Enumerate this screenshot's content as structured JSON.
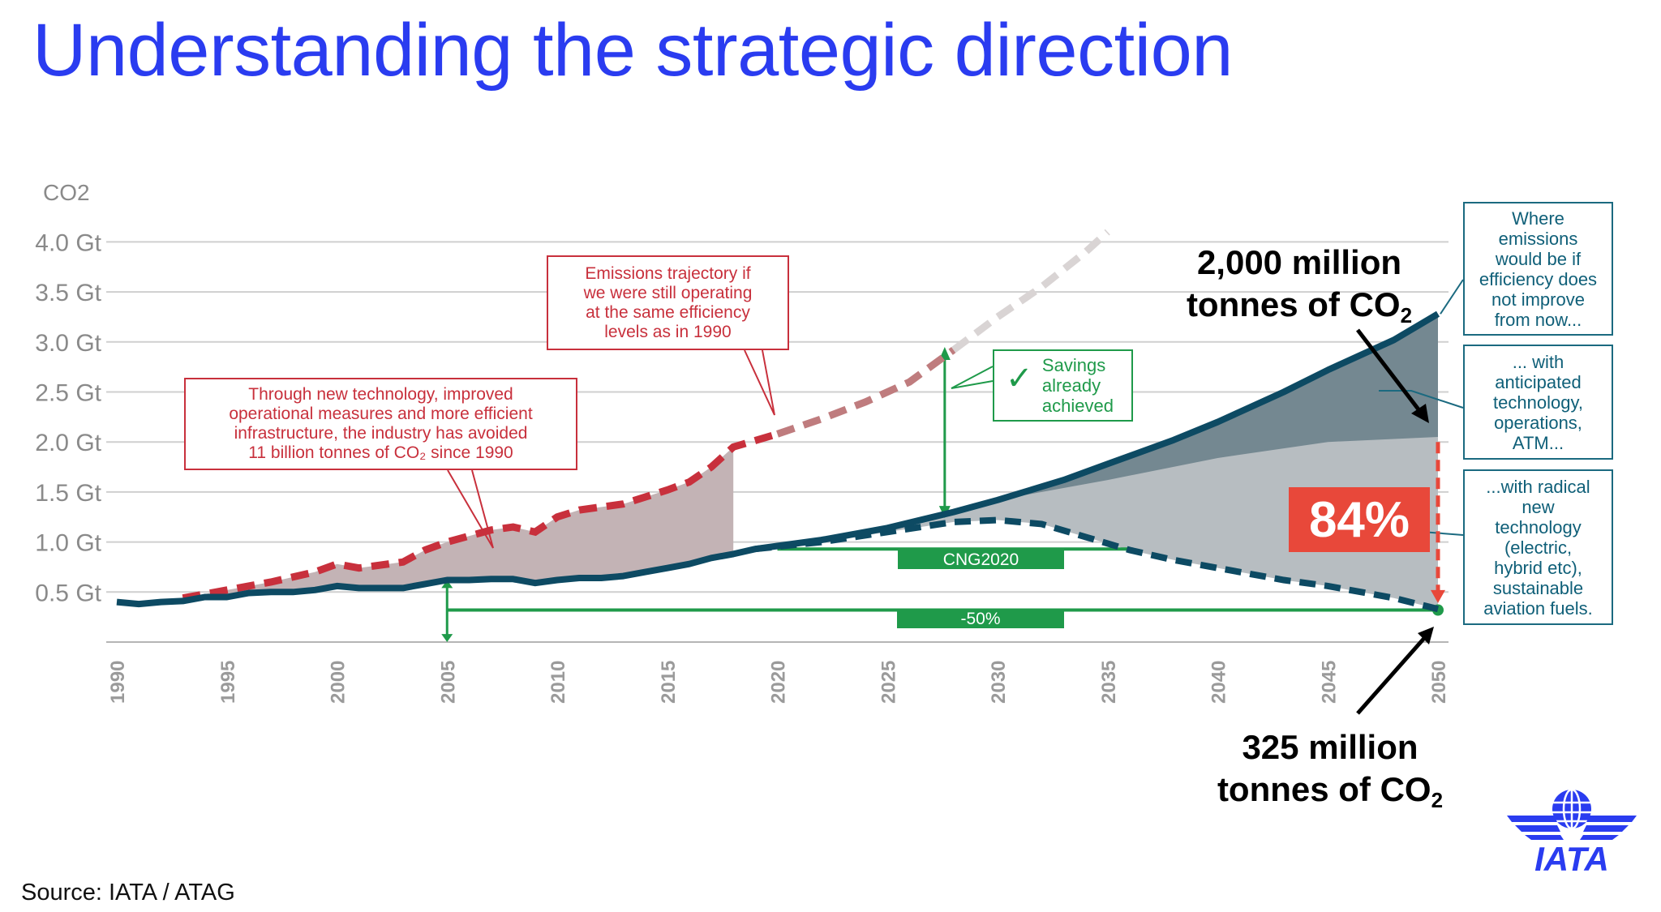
{
  "title": "Understanding the strategic direction",
  "source": "Source: IATA / ATAG",
  "colors": {
    "title": "#2a3cf0",
    "actual_line": "#0d4a63",
    "efficiency_1990_line": "#c8303c",
    "avoided_fill": "#c3b3b5",
    "anticipated_fill": "#748891",
    "radical_fill": "#b7bdc1",
    "green": "#1f9a4a",
    "highlight": "#e8483a"
  },
  "chart_data": {
    "type": "line",
    "ylabel": "CO2",
    "ylim": [
      0,
      4.0
    ],
    "xlim": [
      1990,
      2050
    ],
    "grid": true,
    "y_ticks": [
      "0.5 Gt",
      "1.0 Gt",
      "1.5 Gt",
      "2.0 Gt",
      "2.5 Gt",
      "3.0 Gt",
      "3.5 Gt",
      "4.0 Gt"
    ],
    "y_tick_values": [
      0.5,
      1.0,
      1.5,
      2.0,
      2.5,
      3.0,
      3.5,
      4.0
    ],
    "x_ticks": [
      "1990",
      "1995",
      "2000",
      "2005",
      "2010",
      "2015",
      "2020",
      "2025",
      "2030",
      "2035",
      "2040",
      "2045",
      "2050"
    ],
    "series": [
      {
        "key": "actual_and_no_improvement",
        "style": "solid",
        "x": [
          1990,
          1991,
          1992,
          1993,
          1994,
          1995,
          1996,
          1997,
          1998,
          1999,
          2000,
          2001,
          2002,
          2003,
          2004,
          2005,
          2006,
          2007,
          2008,
          2009,
          2010,
          2011,
          2012,
          2013,
          2014,
          2015,
          2016,
          2017,
          2018,
          2019,
          2020,
          2022,
          2025,
          2028,
          2030,
          2033,
          2035,
          2038,
          2040,
          2043,
          2045,
          2048,
          2050
        ],
        "y": [
          0.4,
          0.38,
          0.4,
          0.41,
          0.45,
          0.45,
          0.49,
          0.5,
          0.5,
          0.52,
          0.56,
          0.54,
          0.54,
          0.54,
          0.58,
          0.62,
          0.62,
          0.63,
          0.63,
          0.59,
          0.62,
          0.64,
          0.64,
          0.66,
          0.7,
          0.74,
          0.78,
          0.84,
          0.88,
          0.93,
          0.96,
          1.02,
          1.14,
          1.3,
          1.42,
          1.62,
          1.78,
          2.02,
          2.2,
          2.5,
          2.72,
          3.02,
          3.28
        ]
      },
      {
        "key": "efficiency_1990",
        "style": "dashed",
        "x": [
          1993,
          1995,
          1997,
          1999,
          2000,
          2001,
          2003,
          2004,
          2005,
          2006,
          2007,
          2008,
          2009,
          2010,
          2011,
          2013,
          2014,
          2015,
          2016,
          2017,
          2018,
          2020,
          2022,
          2024,
          2026,
          2028,
          2030,
          2032,
          2034,
          2035
        ],
        "y": [
          0.44,
          0.52,
          0.6,
          0.7,
          0.78,
          0.74,
          0.8,
          0.92,
          1.0,
          1.06,
          1.12,
          1.15,
          1.1,
          1.25,
          1.32,
          1.38,
          1.45,
          1.52,
          1.6,
          1.75,
          1.95,
          2.08,
          2.23,
          2.4,
          2.6,
          2.92,
          3.25,
          3.55,
          3.9,
          4.1
        ]
      },
      {
        "key": "anticipated_technology",
        "style": "area-boundary",
        "x": [
          2030,
          2035,
          2040,
          2045,
          2050
        ],
        "y": [
          1.42,
          1.62,
          1.84,
          2.0,
          2.05
        ]
      },
      {
        "key": "radical_technology",
        "style": "dashed",
        "x": [
          2019,
          2022,
          2025,
          2028,
          2030,
          2032,
          2034,
          2036,
          2038,
          2040,
          2043,
          2045,
          2048,
          2050
        ],
        "y": [
          0.93,
          1.0,
          1.1,
          1.2,
          1.22,
          1.18,
          1.05,
          0.92,
          0.82,
          0.74,
          0.62,
          0.56,
          0.44,
          0.33
        ]
      }
    ],
    "reference_lines": [
      {
        "label": "CNG2020",
        "y": 0.93,
        "x": [
          2020,
          2036
        ]
      },
      {
        "label": "-50%",
        "y": 0.32,
        "x": [
          2005,
          2050
        ]
      }
    ],
    "annotations": {
      "avoided": "Through new technology, improved\noperational measures and more efficient\ninfrastructure, the industry has avoided\n11 billion tonnes of CO₂ since 1990",
      "trajectory": "Emissions trajectory if\nwe were still operating\nat the same efficiency\nlevels as in 1990",
      "savings": "Savings\nalready\nachieved",
      "no_improve": "Where\nemissions\nwould be if\nefficiency does\nnot improve\nfrom now...",
      "anticipated": "... with\nanticipated\ntechnology,\noperations,\nATM...",
      "radical": "...with radical\nnew\ntechnology\n(electric,\nhybrid etc),\nsustainable\naviation fuels.",
      "top_value": "2,000 million",
      "top_unit": "tonnes of CO",
      "bottom_value": "325 million",
      "bottom_unit": "tonnes of CO",
      "subscript": "2",
      "reduction": "84%"
    }
  },
  "logo": {
    "text": "IATA"
  }
}
